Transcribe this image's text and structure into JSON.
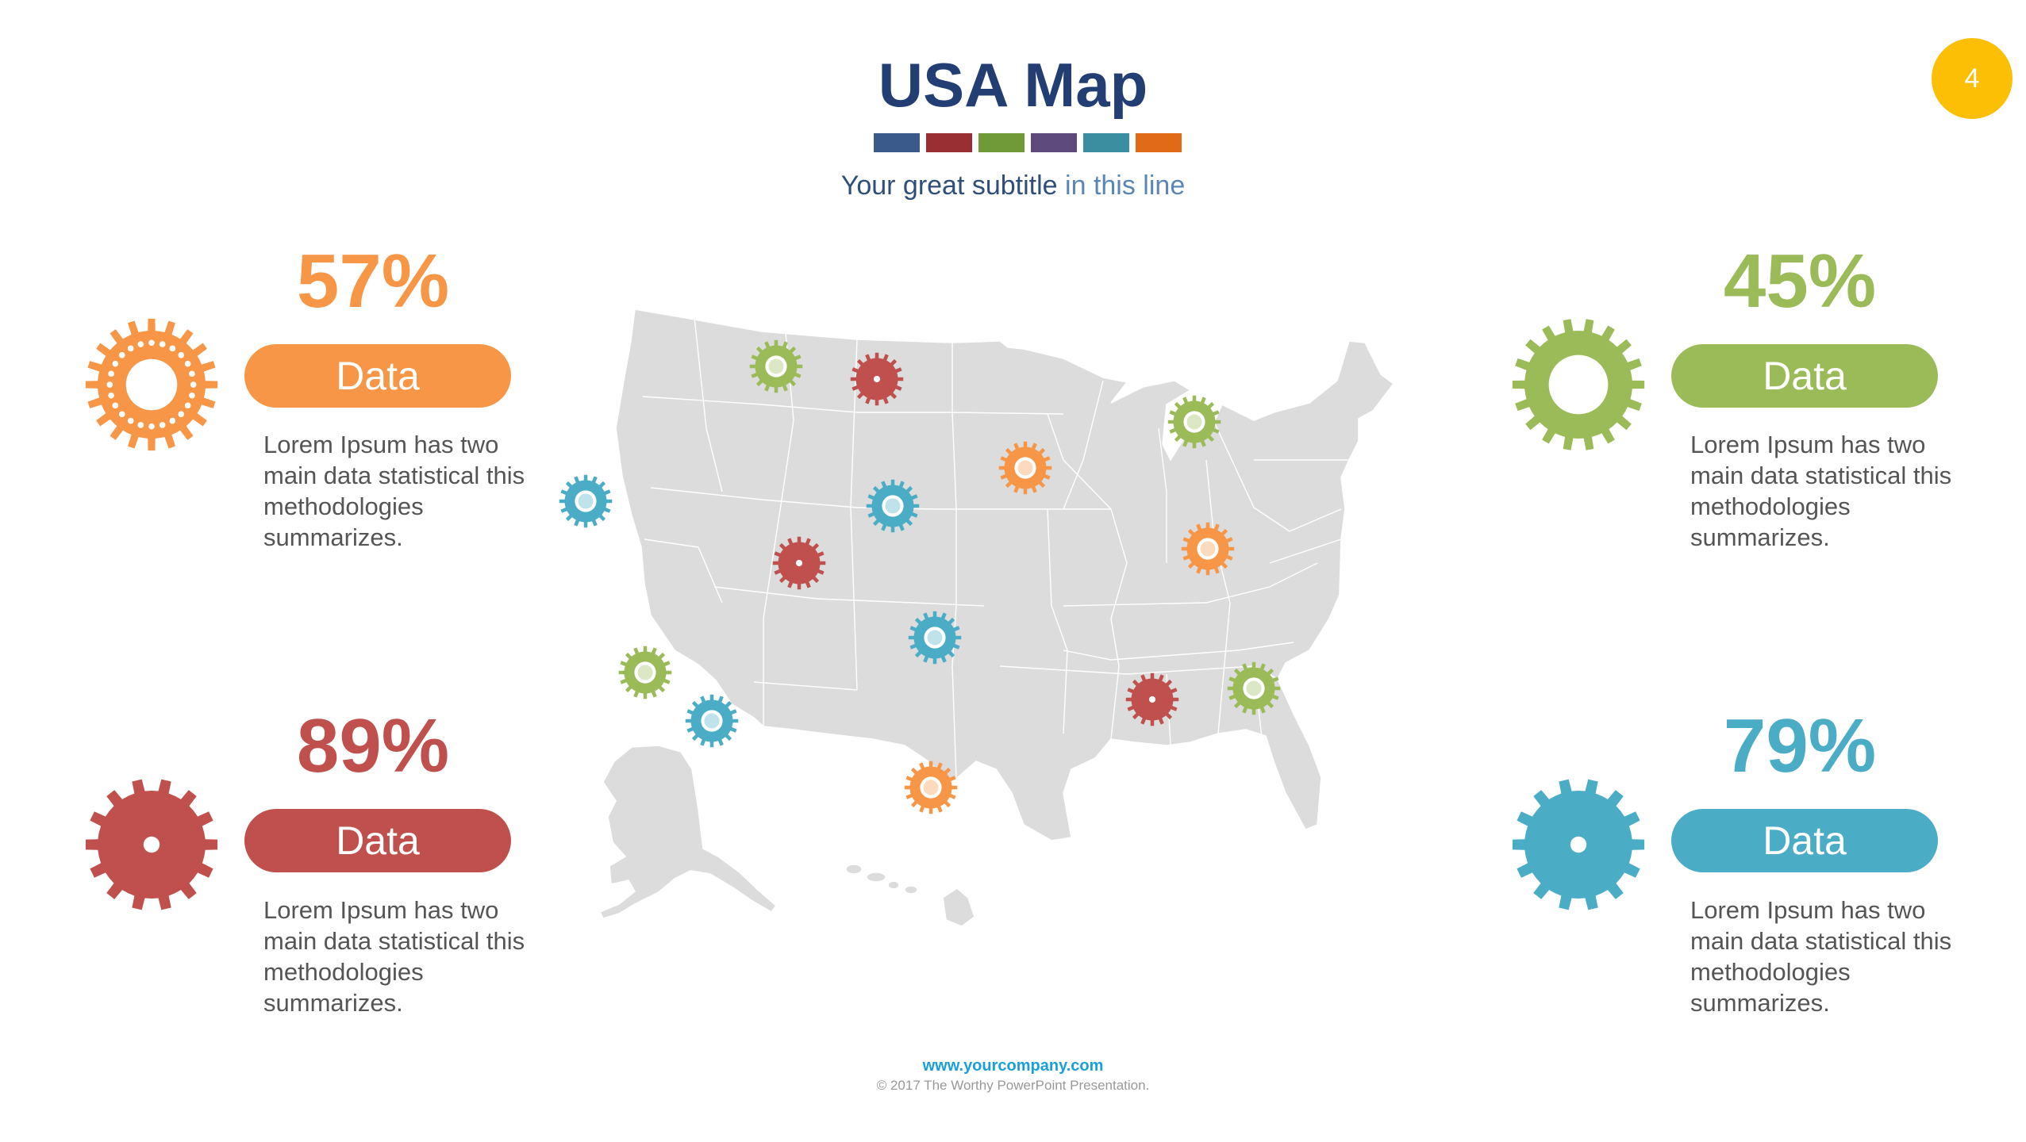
{
  "page_number": "4",
  "title": "USA Map",
  "subtitle": {
    "part1": "Your great subtitle ",
    "part2": "in this line"
  },
  "swatch_colors": [
    "#3a5a8c",
    "#9a2f33",
    "#6f9a37",
    "#5e4a7c",
    "#3a8ea0",
    "#e06a17"
  ],
  "stats": [
    {
      "percent": "57%",
      "label": "Data",
      "description": "Lorem Ipsum has two main data statistical this methodologies summarizes.",
      "color": "#f79646",
      "gear": "dotted-ring-gear-icon"
    },
    {
      "percent": "45%",
      "label": "Data",
      "description": "Lorem Ipsum has two main data statistical this methodologies summarizes.",
      "color": "#9bbb59",
      "gear": "ring-gear-icon"
    },
    {
      "percent": "89%",
      "label": "Data",
      "description": "Lorem Ipsum has two main data statistical this methodologies summarizes.",
      "color": "#c0504d",
      "gear": "solid-gear-icon"
    },
    {
      "percent": "79%",
      "label": "Data",
      "description": "Lorem Ipsum has two main data statistical this methodologies summarizes.",
      "color": "#4bacc6",
      "gear": "solid-gear-icon"
    }
  ],
  "map": {
    "land_color": "#dcdcdc",
    "border_color": "#ffffff",
    "pin_icon": "gear-pin-icon",
    "pins": [
      {
        "location": "Oregon / Northern California",
        "color": "#4bacc6"
      },
      {
        "location": "Montana / Idaho",
        "color": "#9bbb59"
      },
      {
        "location": "North Dakota",
        "color": "#c0504d"
      },
      {
        "location": "Wyoming",
        "color": "#4bacc6"
      },
      {
        "location": "Minnesota",
        "color": "#f79646"
      },
      {
        "location": "Michigan",
        "color": "#9bbb59"
      },
      {
        "location": "Colorado",
        "color": "#c0504d"
      },
      {
        "location": "Ohio",
        "color": "#f79646"
      },
      {
        "location": "Kansas / Oklahoma",
        "color": "#4bacc6"
      },
      {
        "location": "Southern California",
        "color": "#9bbb59"
      },
      {
        "location": "Arizona",
        "color": "#4bacc6"
      },
      {
        "location": "Alabama",
        "color": "#c0504d"
      },
      {
        "location": "South Carolina",
        "color": "#9bbb59"
      },
      {
        "location": "Texas",
        "color": "#f79646"
      }
    ]
  },
  "footer": {
    "url": "www.yourcompany.com",
    "copyright": "© 2017 The Worthy PowerPoint Presentation."
  }
}
